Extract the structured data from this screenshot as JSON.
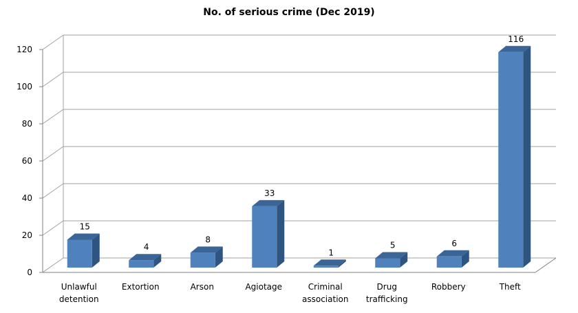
{
  "chart_data": {
    "type": "bar",
    "title": "No. of serious crime (Dec 2019)",
    "categories": [
      "Unlawful detention",
      "Extortion",
      "Arson",
      "Agiotage",
      "Criminal association",
      "Drug trafficking",
      "Robbery",
      "Theft"
    ],
    "category_lines": [
      [
        "Unlawful",
        "detention"
      ],
      [
        "Extortion"
      ],
      [
        "Arson"
      ],
      [
        "Agiotage"
      ],
      [
        "Criminal",
        "association"
      ],
      [
        "Drug",
        "trafficking"
      ],
      [
        "Robbery"
      ],
      [
        "Theft"
      ]
    ],
    "values": [
      15,
      4,
      8,
      33,
      1,
      5,
      6,
      116
    ],
    "ylim": [
      0,
      120
    ],
    "yticks": [
      0,
      20,
      40,
      60,
      80,
      100,
      120
    ],
    "grid": true,
    "legend": "none",
    "style": "3d",
    "colors": {
      "bar_front": "#4f81bd",
      "bar_side": "#2e5481",
      "bar_top": "#3a6596",
      "grid": "#a0a0a0",
      "axis": "#808080"
    }
  }
}
